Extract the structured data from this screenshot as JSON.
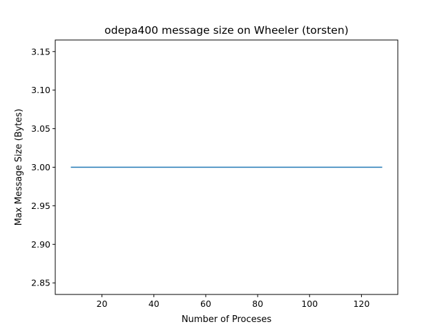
{
  "chart_data": {
    "type": "line",
    "title": "odepa400 message size on Wheeler (torsten)",
    "xlabel": "Number of Proceses",
    "ylabel": "Max Message Size (Bytes)",
    "xlim": [
      2,
      134
    ],
    "ylim": [
      2.835,
      3.165
    ],
    "xticks": [
      20,
      40,
      60,
      80,
      100,
      120
    ],
    "yticks": [
      2.85,
      2.9,
      2.95,
      3.0,
      3.05,
      3.1,
      3.15
    ],
    "grid": false,
    "series": [
      {
        "x": [
          8,
          128
        ],
        "y": [
          3.0,
          3.0
        ],
        "color": "#1f77b4"
      }
    ]
  }
}
